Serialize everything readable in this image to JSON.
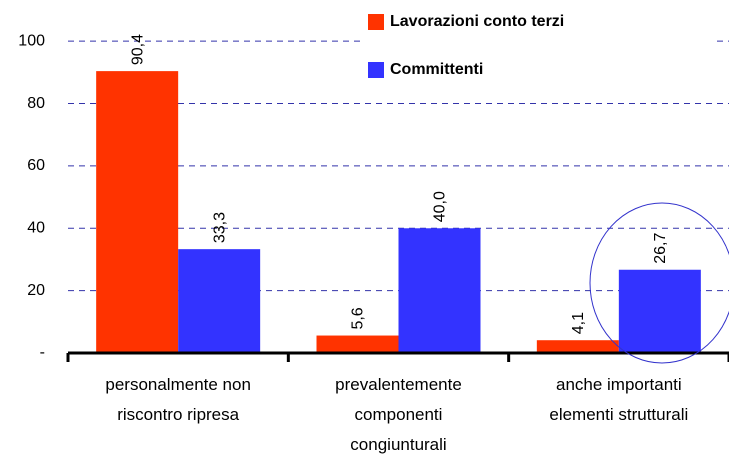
{
  "chart_data": {
    "type": "bar",
    "categories": [
      "personalmente non\nriscontro ripresa",
      "prevalentemente\ncomponenti\ncongiunturali",
      "anche importanti\nelementi strutturali"
    ],
    "series": [
      {
        "name": "Lavorazioni conto terzi",
        "color": "#ff3300",
        "values": [
          90.4,
          5.6,
          4.1
        ],
        "value_labels": [
          "90,4",
          "5,6",
          "4,1"
        ]
      },
      {
        "name": "Committenti",
        "color": "#3333ff",
        "values": [
          33.3,
          40.0,
          26.7
        ],
        "value_labels": [
          "33,3",
          "40,0",
          "26,7"
        ]
      }
    ],
    "ylim": [
      0,
      110
    ],
    "yticks": [
      {
        "value": 0,
        "label": "-"
      },
      20,
      40,
      60,
      80,
      100
    ],
    "grid": true
  }
}
